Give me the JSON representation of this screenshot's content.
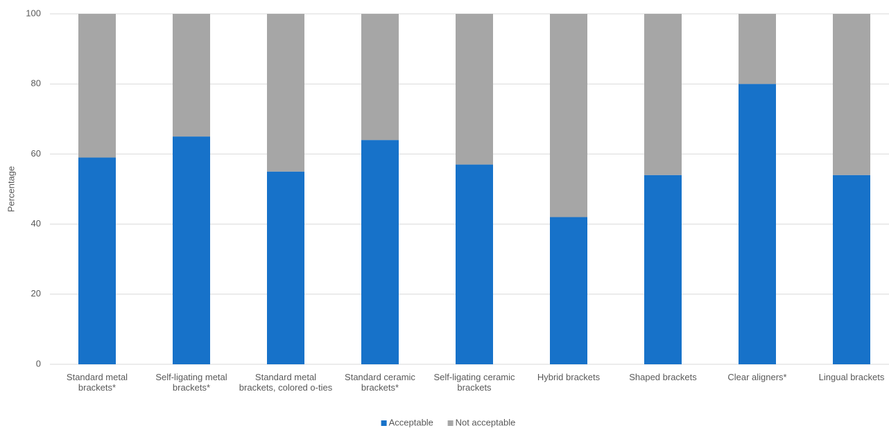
{
  "chart_data": {
    "type": "stacked_bar",
    "y_label": "Percentage",
    "categories": [
      "Standard metal brackets*",
      "Self-ligating metal brackets*",
      "Standard metal brackets, colored o-ties",
      "Standard ceramic brackets*",
      "Self-ligating ceramic brackets",
      "Hybrid brackets",
      "Shaped brackets",
      "Clear aligners*",
      "Lingual brackets"
    ],
    "series": [
      {
        "name": "Acceptable",
        "color": "#1772c9",
        "values": [
          59,
          65,
          55,
          64,
          57,
          42,
          54,
          80,
          54
        ]
      },
      {
        "name": "Not acceptable",
        "color": "#a6a6a6",
        "values": [
          41,
          35,
          45,
          36,
          43,
          58,
          46,
          20,
          46
        ]
      }
    ],
    "ylim": [
      0,
      100
    ],
    "yticks": [
      0,
      20,
      40,
      60,
      80,
      100
    ],
    "grid": true,
    "legend": "bottom"
  }
}
